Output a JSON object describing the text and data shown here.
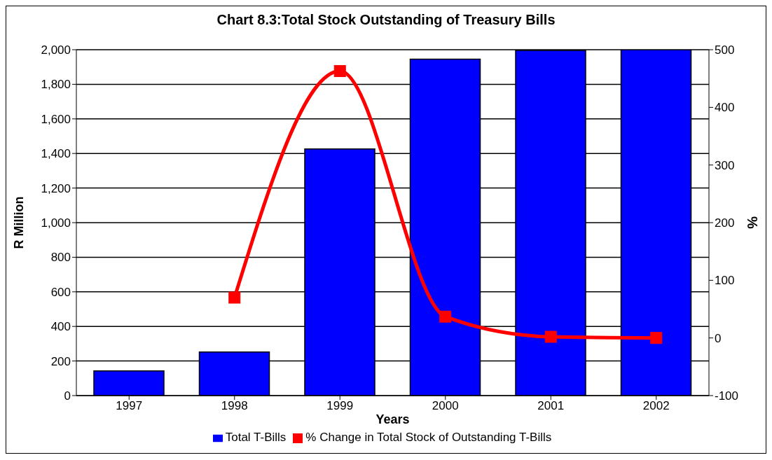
{
  "chart_data": {
    "type": "bar",
    "title": "Chart 8.3:Total Stock Outstanding of Treasury Bills",
    "xlabel": "Years",
    "ylabel": "R Million",
    "y2label": "%",
    "categories": [
      "1997",
      "1998",
      "1999",
      "2000",
      "2001",
      "2002"
    ],
    "series": [
      {
        "name": "Total T-Bills",
        "color": "#0000ff",
        "values": [
          143,
          252,
          1426,
          1945,
          1996,
          2000
        ]
      },
      {
        "name": "% Change in Total Stock of Outstanding T-Bills",
        "type": "line",
        "axis": "y2",
        "color": "#ff0000",
        "marker": "square",
        "values": [
          null,
          70,
          463,
          37,
          2,
          0
        ]
      }
    ],
    "ylim": [
      0,
      2000
    ],
    "yticks": [
      0,
      200,
      400,
      600,
      800,
      {
        "value": 1000,
        "label": "1,000"
      },
      {
        "value": 1200,
        "label": "1,200"
      },
      {
        "value": 1400,
        "label": "1,400"
      },
      {
        "value": 1600,
        "label": "1,600"
      },
      {
        "value": 1800,
        "label": "1,800"
      },
      {
        "value": 2000,
        "label": "2,000"
      }
    ],
    "y2lim": [
      -100,
      500
    ],
    "y2ticks": [
      -100,
      0,
      100,
      200,
      300,
      400,
      500
    ],
    "grid": "y",
    "legend": "bottom"
  }
}
